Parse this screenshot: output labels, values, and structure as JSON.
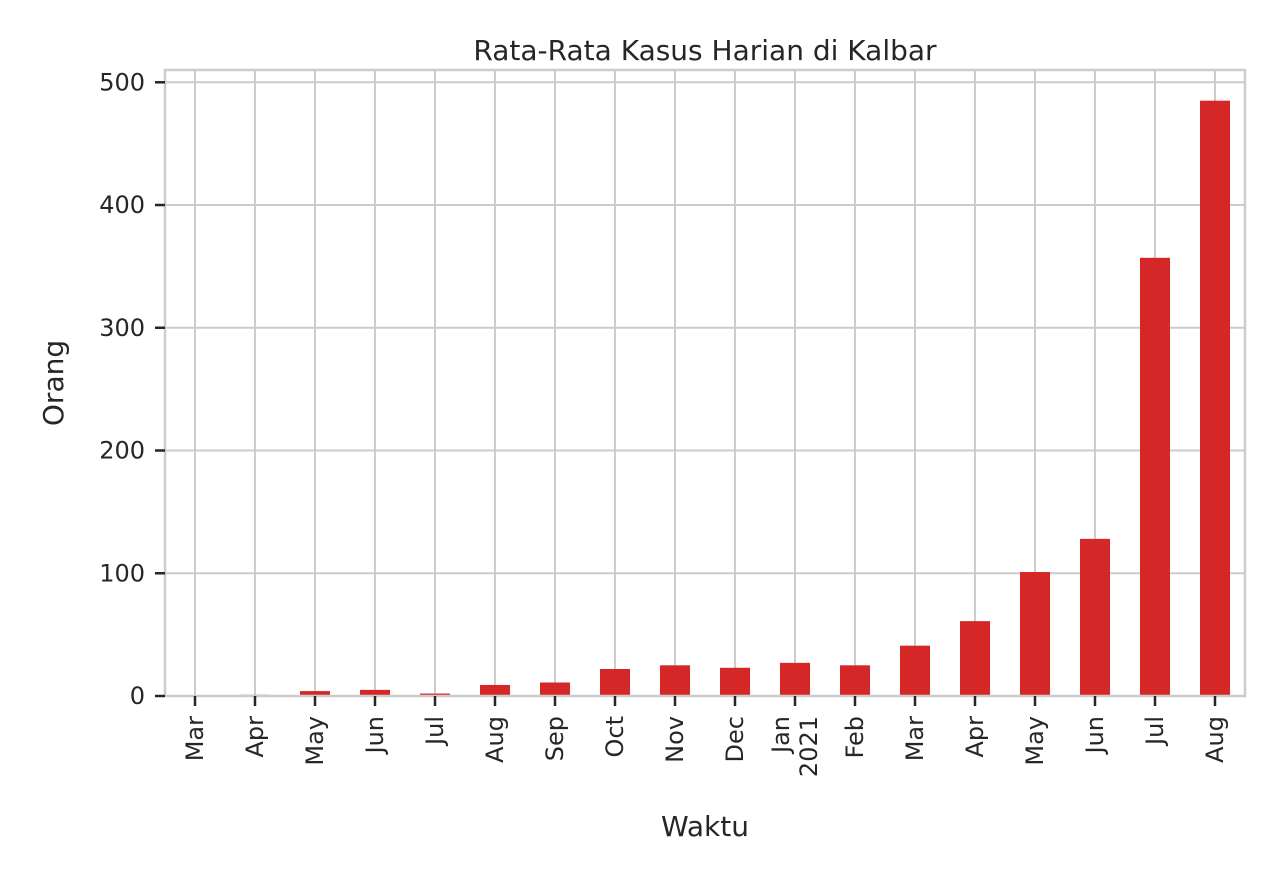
{
  "chart_data": {
    "type": "bar",
    "title": "Rata-Rata Kasus Harian di Kalbar",
    "xlabel": "Waktu",
    "ylabel": "Orang",
    "categories": [
      [
        "Mar"
      ],
      [
        "Apr"
      ],
      [
        "May"
      ],
      [
        "Jun"
      ],
      [
        "Jul"
      ],
      [
        "Aug"
      ],
      [
        "Sep"
      ],
      [
        "Oct"
      ],
      [
        "Nov"
      ],
      [
        "Dec"
      ],
      [
        "Jan",
        "2021"
      ],
      [
        "Feb"
      ],
      [
        "Mar"
      ],
      [
        "Apr"
      ],
      [
        "May"
      ],
      [
        "Jun"
      ],
      [
        "Jul"
      ],
      [
        "Aug"
      ]
    ],
    "values": [
      0,
      1,
      4,
      5,
      2,
      9,
      11,
      22,
      25,
      23,
      27,
      25,
      41,
      61,
      101,
      128,
      357,
      485
    ],
    "ylim": [
      0,
      510
    ],
    "yticks": [
      0,
      100,
      200,
      300,
      400,
      500
    ],
    "grid": true,
    "colors": {
      "bar": "#d62728",
      "grid": "#cccccc",
      "text": "#262626"
    }
  }
}
